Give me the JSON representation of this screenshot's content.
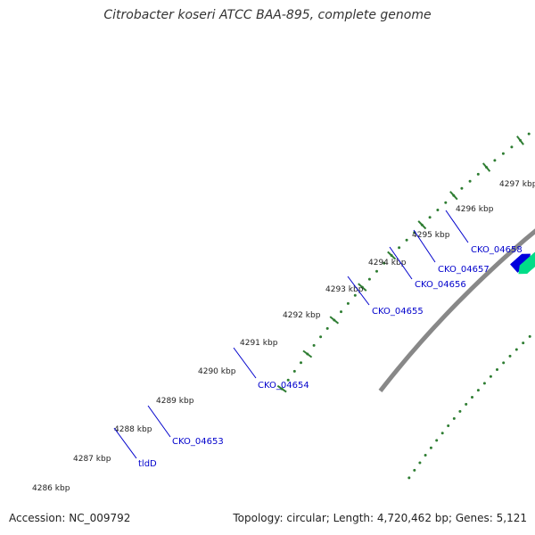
{
  "title": "Citrobacter koseri ATCC BAA-895, complete genome",
  "footer": {
    "accession": "Accession: NC_009792",
    "summary": "Topology: circular; Length: 4,720,462 bp; Genes: 5,121"
  },
  "colors": {
    "backbone": "#888888",
    "forward_cds": "#0000dd",
    "reverse_default": "#c8c8c8",
    "label": "#0000cc",
    "tick_label": "#222222",
    "scale_dots": "#2e7d32",
    "red_gene": "#dd0000",
    "green_gene": "#00dd88"
  },
  "ticks": [
    "4286 kbp",
    "4287 kbp",
    "4288 kbp",
    "4289 kbp",
    "4290 kbp",
    "4291 kbp",
    "4292 kbp",
    "4293 kbp",
    "4294 kbp",
    "4295 kbp",
    "4296 kbp",
    "4297 kbp"
  ],
  "genes": [
    {
      "name": "tldD",
      "strand": "reverse",
      "color": "#c8c8c8"
    },
    {
      "name": "CKO_04653",
      "strand": "reverse",
      "color": "#c8c8c8"
    },
    {
      "name": "CKO_04654",
      "strand": "reverse",
      "color": "#707070"
    },
    {
      "name": "CKO_04655",
      "strand": "reverse",
      "color": "#f08080"
    },
    {
      "name": "CKO_04656",
      "strand": "reverse",
      "color": "#eee6a0"
    },
    {
      "name": "CKO_04657",
      "strand": "reverse",
      "color": "#6b8e23"
    },
    {
      "name": "CKO_04658",
      "strand": "reverse",
      "color": "#6b8e23"
    }
  ]
}
